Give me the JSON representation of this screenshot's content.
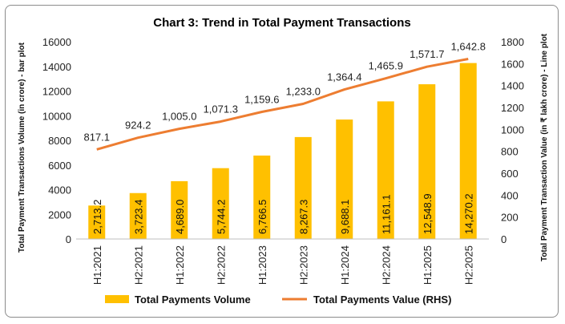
{
  "chart_data": {
    "type": "bar",
    "title": "Chart 3: Trend in Total Payment Transactions",
    "categories": [
      "H1:2021",
      "H2:2021",
      "H1:2022",
      "H2:2022",
      "H1:2023",
      "H2:2023",
      "H1:2024",
      "H2:2024",
      "H1:2025",
      "H2:2025"
    ],
    "series": [
      {
        "name": "Total Payments Volume",
        "type": "bar",
        "axis": "left",
        "color": "#FFC000",
        "values": [
          2713.2,
          3723.4,
          4689.0,
          5744.2,
          6766.5,
          8267.3,
          9688.1,
          11161.1,
          12548.9,
          14270.2
        ],
        "labels": [
          "2,713.2",
          "3,723.4",
          "4,689.0",
          "5,744.2",
          "6,766.5",
          "8,267.3",
          "9,688.1",
          "11,161.1",
          "12,548.9",
          "14,270.2"
        ]
      },
      {
        "name": "Total Payments  Value (RHS)",
        "type": "line",
        "axis": "right",
        "color": "#ED7D31",
        "values": [
          817.1,
          924.2,
          1005.0,
          1071.3,
          1159.6,
          1233.0,
          1364.4,
          1465.9,
          1571.7,
          1642.8
        ],
        "labels": [
          "817.1",
          "924.2",
          "1,005.0",
          "1,071.3",
          "1,159.6",
          "1,233.0",
          "1,364.4",
          "1,465.9",
          "1,571.7",
          "1,642.8"
        ]
      }
    ],
    "ylabel": "Total Payment Transactions Volume (in crore) - bar plot",
    "y2label": "Total Payment Transaction Value (in ₹ lakh crore) - Line plot",
    "ylim": [
      0,
      16000
    ],
    "y2lim": [
      0,
      1800
    ],
    "yticks": [
      0,
      2000,
      4000,
      6000,
      8000,
      10000,
      12000,
      14000,
      16000
    ],
    "y2ticks": [
      0,
      200,
      400,
      600,
      800,
      1000,
      1200,
      1400,
      1600,
      1800
    ],
    "grid": false,
    "legend": "bottom"
  }
}
